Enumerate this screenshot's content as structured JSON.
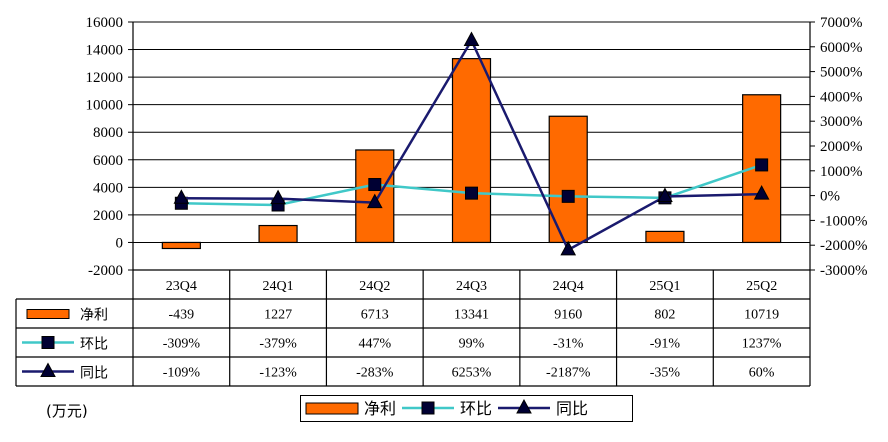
{
  "chart_data": {
    "type": "bar",
    "categories": [
      "23Q4",
      "24Q1",
      "24Q2",
      "24Q3",
      "24Q4",
      "25Q1",
      "25Q2"
    ],
    "series": [
      {
        "name": "净利",
        "type": "bar",
        "axis": "left",
        "color": "#ff6a00",
        "values": [
          -439,
          1227,
          6713,
          13341,
          9160,
          802,
          10719
        ],
        "labels": [
          "-439",
          "1227",
          "6713",
          "13341",
          "9160",
          "802",
          "10719"
        ]
      },
      {
        "name": "环比",
        "type": "line",
        "axis": "right",
        "color": "#40c8c8",
        "marker": "square",
        "values": [
          -309,
          -379,
          447,
          99,
          -31,
          -91,
          1237
        ],
        "labels": [
          "-309%",
          "-379%",
          "447%",
          "99%",
          "-31%",
          "-91%",
          "1237%"
        ]
      },
      {
        "name": "同比",
        "type": "line",
        "axis": "right",
        "color": "#1a1a6e",
        "marker": "triangle",
        "values": [
          -109,
          -123,
          -283,
          6253,
          -2187,
          -35,
          60
        ],
        "labels": [
          "-109%",
          "-123%",
          "-283%",
          "6253%",
          "-2187%",
          "-35%",
          "60%"
        ]
      }
    ],
    "y_left": {
      "ylim": [
        -2000,
        16000
      ],
      "ticks": [
        "16000",
        "14000",
        "12000",
        "10000",
        "8000",
        "6000",
        "4000",
        "2000",
        "0",
        "-2000"
      ]
    },
    "y_right": {
      "ylim": [
        -3000,
        7000
      ],
      "ticks": [
        "7000%",
        "6000%",
        "5000%",
        "4000%",
        "3000%",
        "2000%",
        "1000%",
        "0%",
        "-1000%",
        "-2000%",
        "-3000%"
      ]
    },
    "grid": true,
    "legend_position": "bottom",
    "unit_label": "(万元)"
  }
}
